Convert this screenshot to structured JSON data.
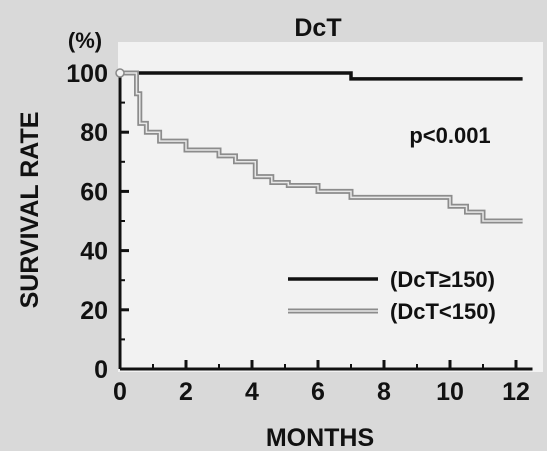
{
  "chart_data": {
    "type": "line",
    "title": "DcT",
    "xlabel": "MONTHS",
    "ylabel": "SURVIVAL RATE",
    "y_unit": "(%)",
    "annotation": "p<0.001",
    "xlim": [
      0,
      12.5
    ],
    "ylim": [
      0,
      100
    ],
    "x_ticks": [
      0,
      2,
      4,
      6,
      8,
      10,
      12
    ],
    "y_ticks": [
      0,
      20,
      40,
      60,
      80,
      100
    ],
    "x_tick_labels": [
      "0",
      "2",
      "4",
      "6",
      "8",
      "10",
      "12"
    ],
    "y_tick_labels": [
      "0",
      "20",
      "40",
      "60",
      "80",
      "100"
    ],
    "step": true,
    "grid": false,
    "legend_position": "bottom-right",
    "series": [
      {
        "name": "(DcT≥150)",
        "color": "#111111",
        "style": "solid",
        "x": [
          0,
          7.0,
          12.2
        ],
        "y": [
          100,
          98,
          98
        ]
      },
      {
        "name": "(DcT<150)",
        "color": "#8c8c8c",
        "style": "double",
        "x": [
          0,
          0.5,
          0.6,
          0.8,
          1.2,
          2.0,
          3.0,
          3.5,
          4.1,
          4.6,
          5.1,
          6.0,
          7.0,
          10.0,
          10.5,
          11.0,
          12.2
        ],
        "y": [
          100,
          93,
          83,
          80,
          77,
          74,
          72,
          70,
          65,
          63,
          62,
          60,
          58,
          55,
          53,
          50,
          50
        ]
      }
    ]
  }
}
